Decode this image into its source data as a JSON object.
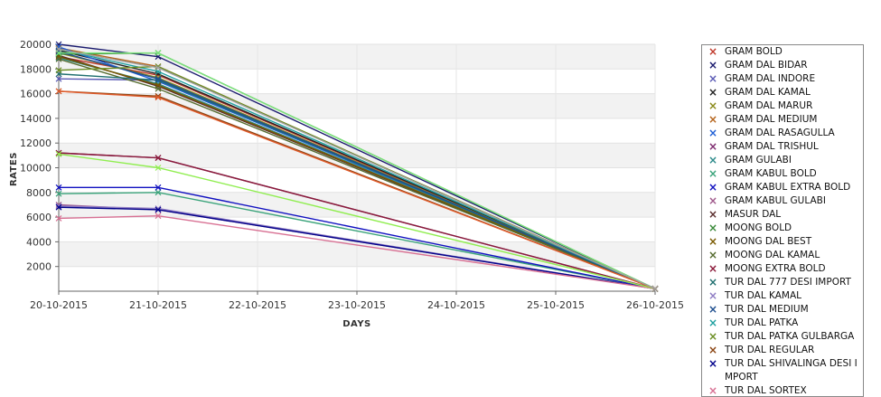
{
  "chart_data": {
    "type": "line",
    "xlabel": "DAYS",
    "ylabel": "RATES",
    "x": [
      "20-10-2015",
      "21-10-2015",
      "22-10-2015",
      "23-10-2015",
      "24-10-2015",
      "25-10-2015",
      "26-10-2015"
    ],
    "ylim": [
      0,
      20000
    ],
    "yticks": [
      2000,
      4000,
      6000,
      8000,
      10000,
      12000,
      14000,
      16000,
      18000,
      20000
    ],
    "grid": true,
    "legend_position": "right",
    "series": [
      {
        "name": "GRAM BOLD",
        "color": "#c0392b",
        "values": [
          19000,
          17500,
          null,
          null,
          null,
          null,
          200
        ]
      },
      {
        "name": "GRAM DAL BIDAR",
        "color": "#1a1a6e",
        "values": [
          20000,
          19000,
          null,
          null,
          null,
          null,
          200
        ]
      },
      {
        "name": "GRAM DAL INDORE",
        "color": "#5b5bb5",
        "values": [
          17200,
          17100,
          null,
          null,
          null,
          null,
          200
        ]
      },
      {
        "name": "GRAM DAL KAMAL",
        "color": "#222222",
        "values": [
          19500,
          17600,
          null,
          null,
          null,
          null,
          200
        ]
      },
      {
        "name": "GRAM DAL MARUR",
        "color": "#8a8a1a",
        "values": [
          19300,
          17300,
          null,
          null,
          null,
          null,
          200
        ]
      },
      {
        "name": "GRAM DAL MEDIUM",
        "color": "#b5651d",
        "values": [
          19700,
          18200,
          null,
          null,
          null,
          null,
          200
        ]
      },
      {
        "name": "GRAM DAL RASAGULLA",
        "color": "#1f5fd6",
        "values": [
          19800,
          17000,
          null,
          null,
          null,
          null,
          200
        ]
      },
      {
        "name": "GRAM DAL TRISHUL",
        "color": "#7d2a6e",
        "values": [
          11200,
          10800,
          null,
          null,
          null,
          null,
          200
        ]
      },
      {
        "name": "GRAM GULABI",
        "color": "#2e8b8b",
        "values": [
          18900,
          16800,
          null,
          null,
          null,
          null,
          200
        ]
      },
      {
        "name": "GRAM KABUL BOLD",
        "color": "#3aa37a",
        "values": [
          7900,
          8000,
          null,
          null,
          null,
          null,
          200
        ]
      },
      {
        "name": "GRAM KABUL EXTRA BOLD",
        "color": "#1010c0",
        "values": [
          8400,
          8400,
          null,
          null,
          null,
          null,
          200
        ]
      },
      {
        "name": "GRAM KABUL GULABI",
        "color": "#a05a8c",
        "values": [
          7000,
          6600,
          null,
          null,
          null,
          null,
          200
        ]
      },
      {
        "name": "MASUR DAL",
        "color": "#5a2d2d",
        "values": [
          19100,
          16600,
          null,
          null,
          null,
          null,
          200
        ]
      },
      {
        "name": "MOONG BOLD",
        "color": "#3a8a3a",
        "values": [
          19200,
          19300,
          null,
          null,
          null,
          null,
          200
        ]
      },
      {
        "name": "MOONG DAL BEST",
        "color": "#7a5a00",
        "values": [
          19000,
          16700,
          null,
          null,
          null,
          null,
          200
        ]
      },
      {
        "name": "MOONG DAL KAMAL",
        "color": "#556b2f",
        "values": [
          18800,
          16400,
          null,
          null,
          null,
          null,
          200
        ]
      },
      {
        "name": "MOONG EXTRA BOLD",
        "color": "#8b1a3a",
        "values": [
          11200,
          10800,
          null,
          null,
          null,
          null,
          200
        ]
      },
      {
        "name": "TUR DAL  777 DESI IMPORT",
        "color": "#1f6f6f",
        "values": [
          17600,
          17100,
          null,
          null,
          null,
          null,
          200
        ]
      },
      {
        "name": "TUR DAL KAMAL",
        "color": "#8e7cc3",
        "values": [
          6900,
          6700,
          null,
          null,
          null,
          null,
          200
        ]
      },
      {
        "name": "TUR DAL MEDIUM",
        "color": "#1f4f8f",
        "values": [
          19400,
          17200,
          null,
          null,
          null,
          null,
          200
        ]
      },
      {
        "name": "TUR DAL PATKA",
        "color": "#20a0a0",
        "values": [
          19600,
          17800,
          null,
          null,
          null,
          null,
          200
        ]
      },
      {
        "name": "TUR DAL PATKA GULBARGA",
        "color": "#6b8e23",
        "values": [
          17900,
          18200,
          null,
          null,
          null,
          null,
          200
        ]
      },
      {
        "name": "TUR DAL REGULAR",
        "color": "#8b4513",
        "values": [
          16200,
          15800,
          null,
          null,
          null,
          null,
          200
        ]
      },
      {
        "name": "TUR DAL SHIVALINGA DESI IMPORT",
        "color": "#00008b",
        "values": [
          6800,
          6600,
          null,
          null,
          null,
          null,
          200
        ]
      },
      {
        "name": "TUR DAL SORTEX",
        "color": "#d87093",
        "values": [
          5900,
          6100,
          null,
          null,
          null,
          null,
          200
        ]
      },
      {
        "name": "",
        "color": "#7be37b",
        "values": [
          19300,
          19300,
          null,
          null,
          null,
          null,
          200
        ]
      },
      {
        "name": "",
        "color": "#90ee50",
        "values": [
          11100,
          10000,
          null,
          null,
          null,
          null,
          200
        ]
      },
      {
        "name": "",
        "color": "#e05a2a",
        "values": [
          16200,
          15700,
          null,
          null,
          null,
          null,
          200
        ]
      },
      {
        "name": "",
        "color": "#a0a0a0",
        "values": [
          19600,
          18100,
          null,
          null,
          null,
          null,
          200
        ]
      }
    ]
  },
  "legend": {
    "items": [
      {
        "label": "GRAM BOLD",
        "color": "#c0392b"
      },
      {
        "label": "GRAM DAL BIDAR",
        "color": "#1a1a6e"
      },
      {
        "label": "GRAM DAL INDORE",
        "color": "#5b5bb5"
      },
      {
        "label": "GRAM DAL KAMAL",
        "color": "#222222"
      },
      {
        "label": "GRAM DAL MARUR",
        "color": "#8a8a1a"
      },
      {
        "label": "GRAM DAL MEDIUM",
        "color": "#b5651d"
      },
      {
        "label": "GRAM DAL RASAGULLA",
        "color": "#1f5fd6"
      },
      {
        "label": "GRAM DAL TRISHUL",
        "color": "#7d2a6e"
      },
      {
        "label": "GRAM GULABI",
        "color": "#2e8b8b"
      },
      {
        "label": "GRAM KABUL BOLD",
        "color": "#3aa37a"
      },
      {
        "label": "GRAM KABUL EXTRA BOLD",
        "color": "#1010c0"
      },
      {
        "label": "GRAM KABUL GULABI",
        "color": "#a05a8c"
      },
      {
        "label": "MASUR DAL",
        "color": "#5a2d2d"
      },
      {
        "label": "MOONG BOLD",
        "color": "#3a8a3a"
      },
      {
        "label": "MOONG DAL BEST",
        "color": "#7a5a00"
      },
      {
        "label": "MOONG DAL KAMAL",
        "color": "#556b2f"
      },
      {
        "label": "MOONG EXTRA BOLD",
        "color": "#8b1a3a"
      },
      {
        "label": "TUR DAL  777 DESI IMPORT",
        "color": "#1f6f6f"
      },
      {
        "label": "TUR DAL KAMAL",
        "color": "#8e7cc3"
      },
      {
        "label": "TUR DAL MEDIUM",
        "color": "#1f4f8f"
      },
      {
        "label": "TUR DAL PATKA",
        "color": "#20a0a0"
      },
      {
        "label": "TUR DAL PATKA GULBARGA",
        "color": "#6b8e23"
      },
      {
        "label": "TUR DAL REGULAR",
        "color": "#8b4513"
      },
      {
        "label": "TUR DAL SHIVALINGA DESI IMPORT",
        "color": "#00008b"
      },
      {
        "label": "TUR DAL SORTEX",
        "color": "#d87093"
      }
    ]
  }
}
